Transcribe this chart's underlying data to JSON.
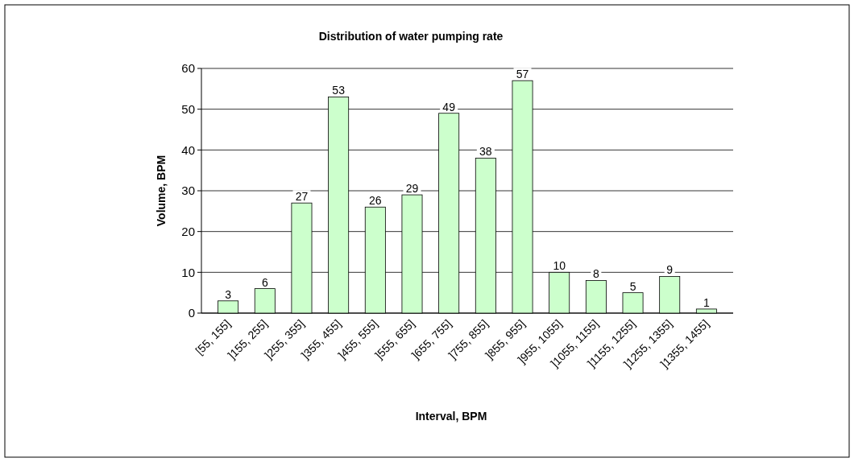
{
  "chart_data": {
    "type": "bar",
    "title": "Distribution of water pumping rate",
    "xlabel": "Interval, BPM",
    "ylabel": "Volume, BPM",
    "categories": [
      "[55, 155]",
      "]155, 255]",
      "]255, 355]",
      "]355, 455]",
      "]455, 555]",
      "]555, 655]",
      "]655, 755]",
      "]755, 855]",
      "]855, 955]",
      "]955, 1055]",
      "]1055, 1155]",
      "]1155, 1255]",
      "]1255, 1355]",
      "]1355, 1455]"
    ],
    "values": [
      3,
      6,
      27,
      53,
      26,
      29,
      49,
      38,
      57,
      10,
      8,
      5,
      9,
      1
    ],
    "color": "#ccffcc",
    "ylim": [
      0,
      60
    ],
    "yticks": [
      0,
      10,
      20,
      30,
      40,
      50,
      60
    ],
    "grid": "y",
    "data_labels": true
  }
}
